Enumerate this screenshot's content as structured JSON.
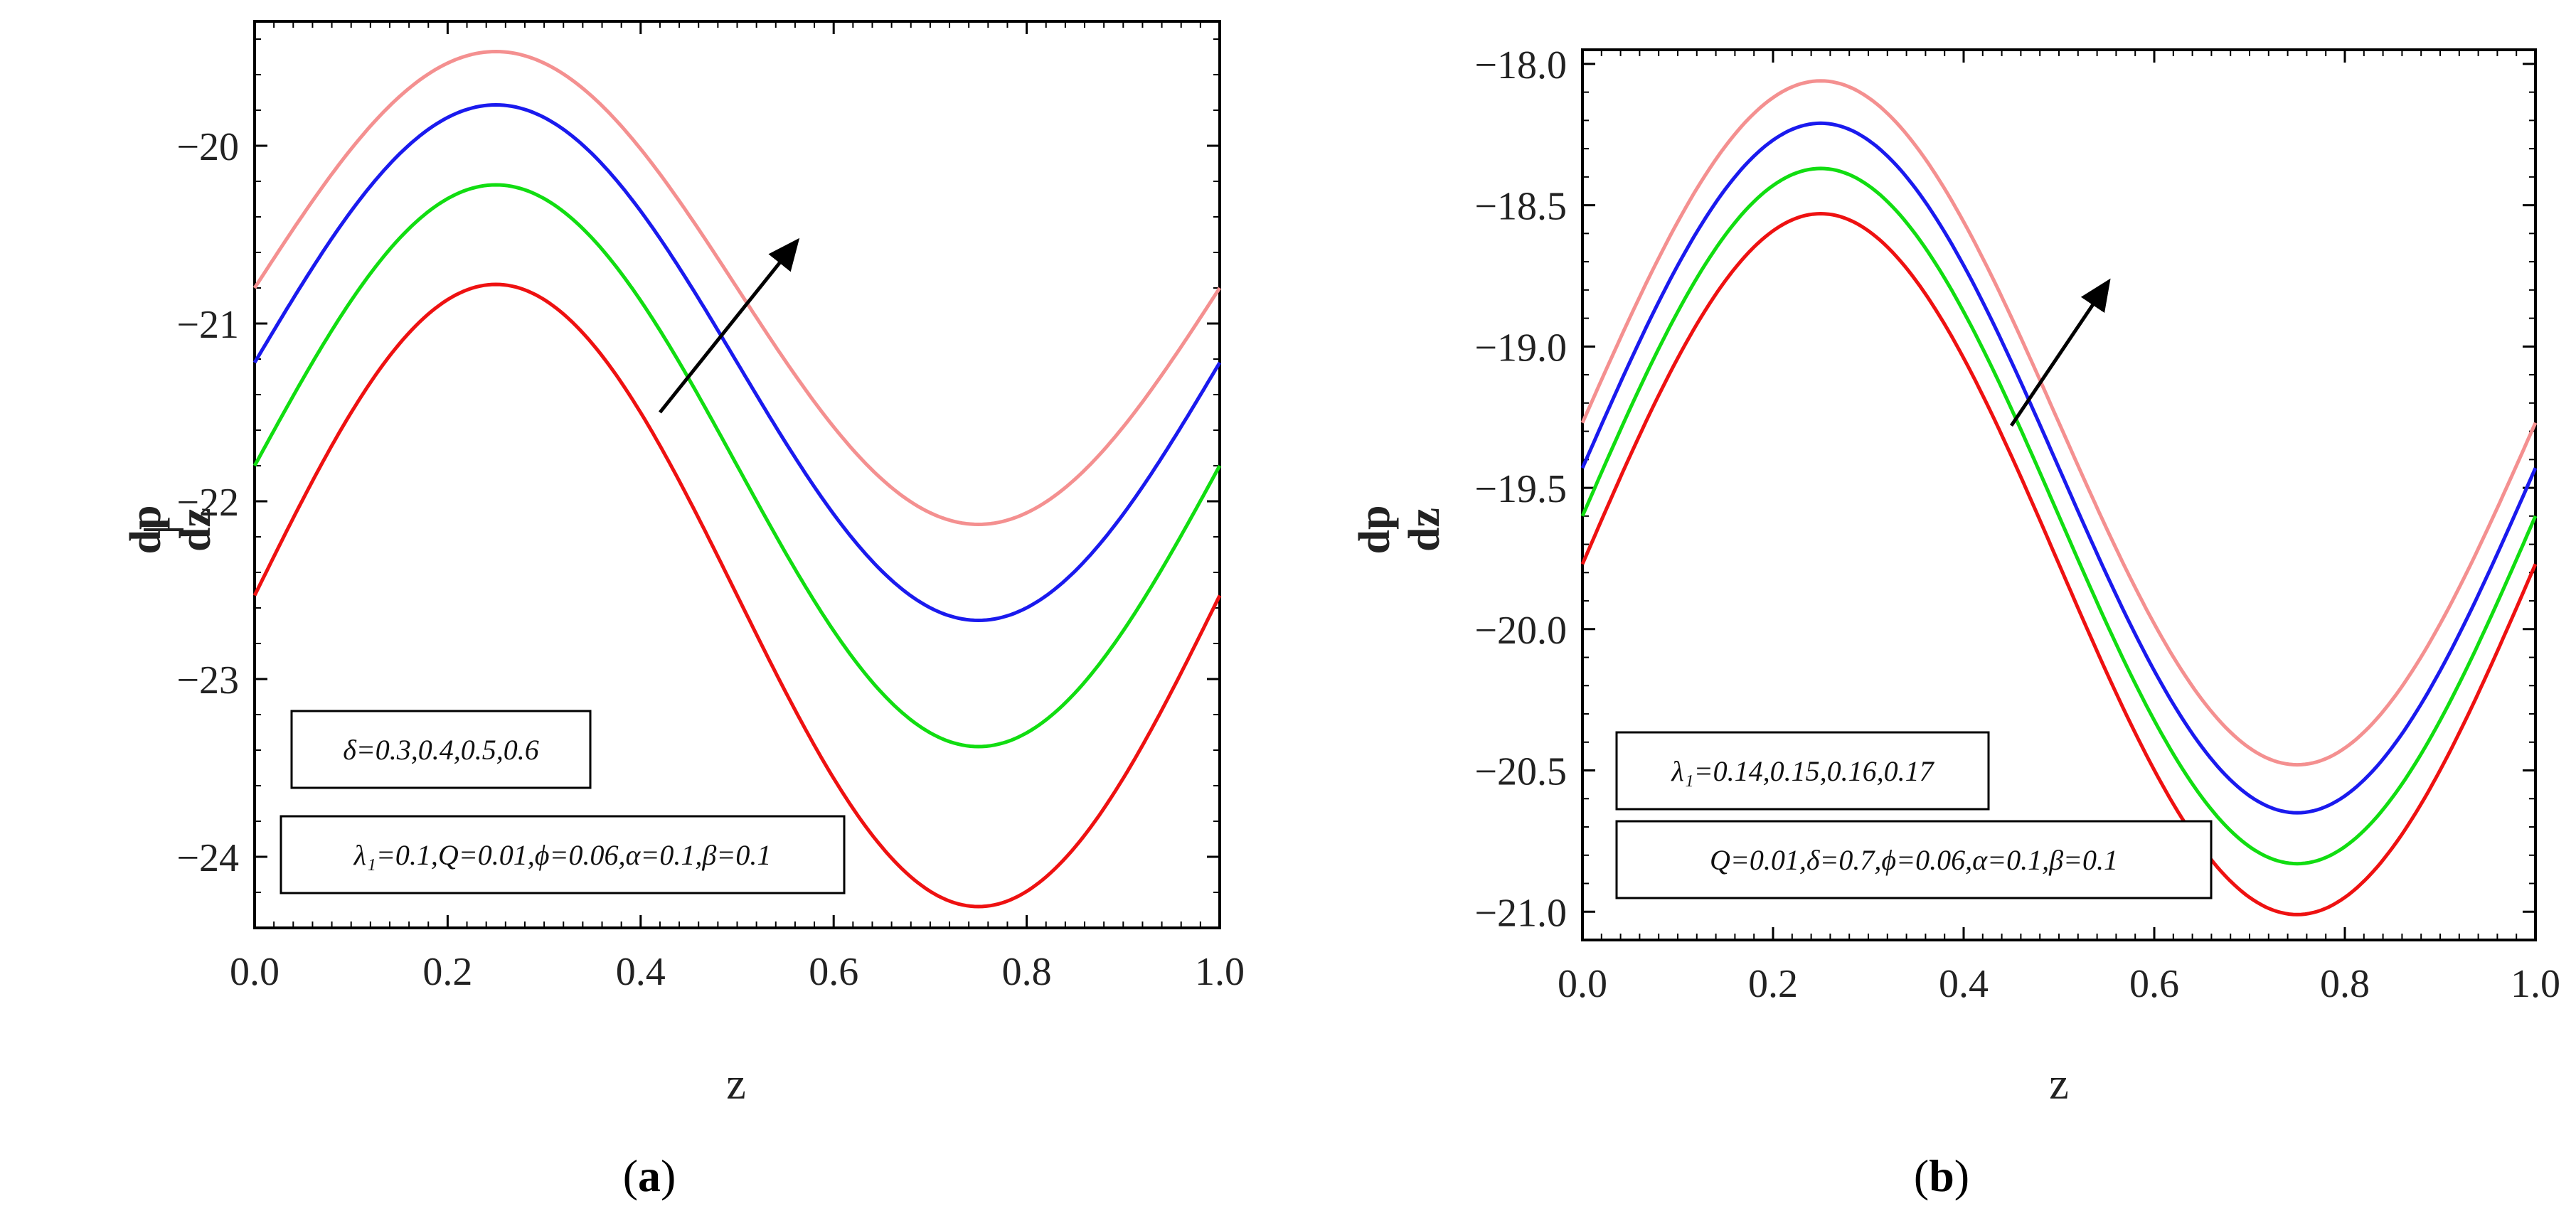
{
  "chart_data": [
    {
      "type": "line",
      "panel_label": "a",
      "xlabel": "z",
      "ylabel_num": "dp",
      "ylabel_den": "dz",
      "xlim": [
        0.0,
        1.0
      ],
      "ylim": [
        -24.4,
        -19.3
      ],
      "x_ticks": [
        "0.0",
        "0.2",
        "0.4",
        "0.6",
        "0.8",
        "1.0"
      ],
      "y_ticks": [
        "-20",
        "-21",
        "-22",
        "-23",
        "-24"
      ],
      "y_tick_values": [
        -20,
        -21,
        -22,
        -23,
        -24
      ],
      "legend_top": "δ=0.3,0.4,0.5,0.6",
      "legend_bottom": "λ₁=0.1,Q=0.01,ϕ=0.06,α=0.1,β=0.1",
      "series": [
        {
          "name": "δ=0.3",
          "color": "#ee1111",
          "center": -22.53,
          "amplitude": 1.75
        },
        {
          "name": "δ=0.4",
          "color": "#11dd11",
          "center": -21.8,
          "amplitude": 1.58
        },
        {
          "name": "δ=0.5",
          "color": "#1a1aee",
          "center": -21.22,
          "amplitude": 1.45
        },
        {
          "name": "δ=0.6",
          "color": "#f49090",
          "center": -20.8,
          "amplitude": 1.33
        }
      ],
      "arrow": {
        "from": [
          0.42,
          -21.5
        ],
        "to": [
          0.56,
          -20.55
        ]
      }
    },
    {
      "type": "line",
      "panel_label": "b",
      "xlabel": "z",
      "ylabel_num": "dp",
      "ylabel_den": "dz",
      "xlim": [
        0.0,
        1.0
      ],
      "ylim": [
        -21.1,
        -17.95
      ],
      "x_ticks": [
        "0.0",
        "0.2",
        "0.4",
        "0.6",
        "0.8",
        "1.0"
      ],
      "y_ticks": [
        "-18.0",
        "-18.5",
        "-19.0",
        "-19.5",
        "-20.0",
        "-20.5",
        "-21.0"
      ],
      "y_tick_values": [
        -18.0,
        -18.5,
        -19.0,
        -19.5,
        -20.0,
        -20.5,
        -21.0
      ],
      "legend_top": "λ₁=0.14,0.15,0.16,0.17",
      "legend_bottom": "Q=0.01,δ=0.7,ϕ=0.06,α=0.1,β=0.1",
      "series": [
        {
          "name": "λ₁=0.14",
          "color": "#ee1111",
          "center": -19.77,
          "amplitude": 1.24
        },
        {
          "name": "λ₁=0.15",
          "color": "#11dd11",
          "center": -19.6,
          "amplitude": 1.23
        },
        {
          "name": "λ₁=0.16",
          "color": "#1a1aee",
          "center": -19.43,
          "amplitude": 1.22
        },
        {
          "name": "λ₁=0.17",
          "color": "#f49090",
          "center": -19.27,
          "amplitude": 1.21
        }
      ],
      "arrow": {
        "from": [
          0.45,
          -19.28
        ],
        "to": [
          0.55,
          -18.78
        ]
      }
    }
  ]
}
